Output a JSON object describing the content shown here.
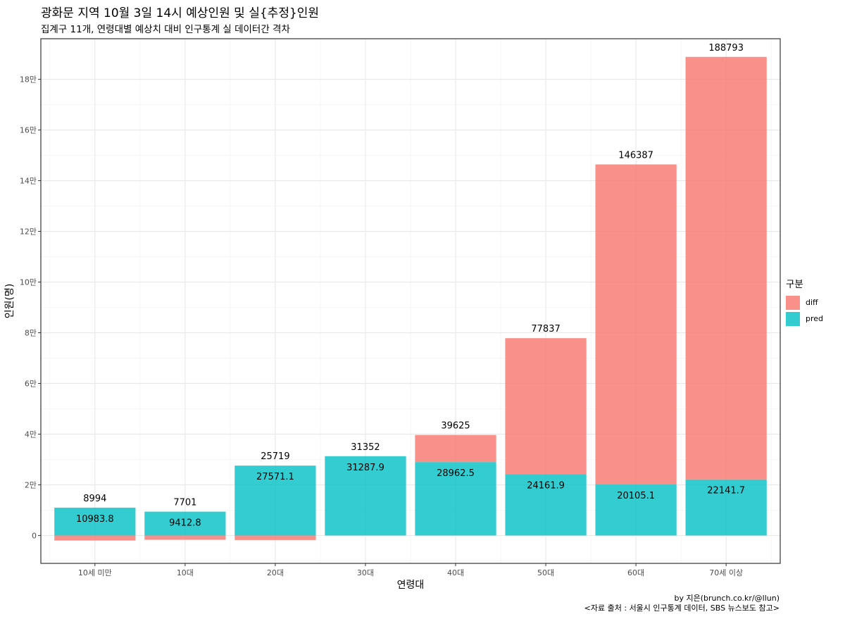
{
  "title": "광화문 지역 10월 3일 14시 예상인원 및 실{추정}인원",
  "subtitle": "집계구 11개, 연령대별 예상치 대비 인구통계 실 데이터간 격차",
  "caption": {
    "line1": "by 지은(brunch.co.kr/@llun)",
    "line2": "<자료 출처 : 서울시 인구통계 데이터, SBS 뉴스보도 참고>"
  },
  "chart_data": {
    "type": "bar",
    "stacked": true,
    "xlabel": "연령대",
    "ylabel": "인원(명)",
    "ylim": [
      -11000,
      196000
    ],
    "y_ticks": [
      0,
      20000,
      40000,
      60000,
      80000,
      100000,
      120000,
      140000,
      160000,
      180000
    ],
    "y_tick_labels": [
      "0",
      "2만",
      "4만",
      "6만",
      "8만",
      "10만",
      "12만",
      "14만",
      "16만",
      "18만"
    ],
    "categories": [
      "10세 미만",
      "10대",
      "20대",
      "30대",
      "40대",
      "50대",
      "60대",
      "70세 이상"
    ],
    "series": [
      {
        "name": "diff",
        "color": "#F8766D",
        "values": [
          -2000,
          -1700,
          -1800,
          0,
          10700,
          53700,
          126300,
          166700
        ]
      },
      {
        "name": "pred",
        "color": "#00BFC4",
        "values": [
          10983.8,
          9412.8,
          27571.1,
          31287.9,
          28962.5,
          24161.9,
          20105.1,
          22141.7
        ]
      }
    ],
    "pred_labels": [
      "10983.8",
      "9412.8",
      "27571.1",
      "31287.9",
      "28962.5",
      "24161.9",
      "20105.1",
      "22141.7"
    ],
    "total_labels": [
      "8994",
      "7701",
      "25719",
      "31352",
      "39625",
      "77837",
      "146387",
      "188793"
    ],
    "totals": [
      8994,
      7701,
      25719,
      31352,
      39625,
      77837,
      146387,
      188793
    ],
    "legend": {
      "title": "구분",
      "position": "right",
      "items": [
        "diff",
        "pred"
      ]
    },
    "grid": true
  }
}
